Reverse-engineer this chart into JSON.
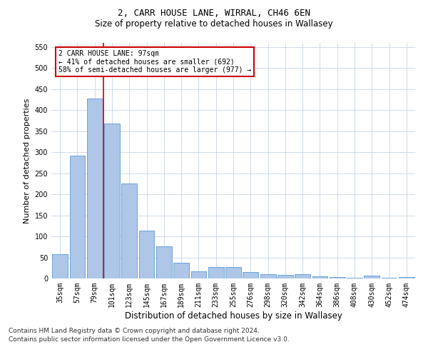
{
  "title": "2, CARR HOUSE LANE, WIRRAL, CH46 6EN",
  "subtitle": "Size of property relative to detached houses in Wallasey",
  "xlabel": "Distribution of detached houses by size in Wallasey",
  "ylabel": "Number of detached properties",
  "footnote1": "Contains HM Land Registry data © Crown copyright and database right 2024.",
  "footnote2": "Contains public sector information licensed under the Open Government Licence v3.0.",
  "annotation_line1": "2 CARR HOUSE LANE: 97sqm",
  "annotation_line2": "← 41% of detached houses are smaller (692)",
  "annotation_line3": "58% of semi-detached houses are larger (977) →",
  "bar_labels": [
    "35sqm",
    "57sqm",
    "79sqm",
    "101sqm",
    "123sqm",
    "145sqm",
    "167sqm",
    "189sqm",
    "211sqm",
    "233sqm",
    "255sqm",
    "276sqm",
    "298sqm",
    "320sqm",
    "342sqm",
    "364sqm",
    "386sqm",
    "408sqm",
    "430sqm",
    "452sqm",
    "474sqm"
  ],
  "bar_values": [
    57,
    292,
    428,
    368,
    225,
    113,
    76,
    38,
    17,
    27,
    27,
    15,
    10,
    9,
    10,
    5,
    4,
    1,
    6,
    1,
    4
  ],
  "bar_color": "#aec6e8",
  "bar_edge_color": "#5b9bd5",
  "vline_color": "#cc0000",
  "vline_pos": 2.5,
  "annotation_box_color": "#cc0000",
  "ylim": [
    0,
    560
  ],
  "yticks": [
    0,
    50,
    100,
    150,
    200,
    250,
    300,
    350,
    400,
    450,
    500,
    550
  ],
  "background_color": "#ffffff",
  "grid_color": "#c8d4e8",
  "title_fontsize": 9,
  "subtitle_fontsize": 8.5,
  "ylabel_fontsize": 8,
  "xlabel_fontsize": 8.5,
  "tick_fontsize": 7,
  "annotation_fontsize": 7,
  "footnote_fontsize": 6.5
}
